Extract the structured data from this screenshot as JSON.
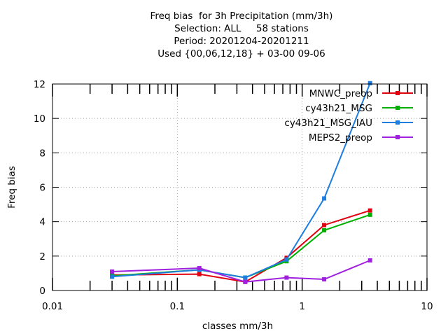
{
  "chart_data": {
    "type": "line",
    "title_lines": [
      "Freq bias  for 3h Precipitation (mm/3h)",
      "Selection: ALL     58 stations",
      "Period: 20201204-20201211",
      "Used {00,06,12,18} + 03-00 09-06"
    ],
    "xlabel": "classes mm/3h",
    "ylabel": "Freq bias",
    "x_scale": "log",
    "xlim": [
      0.01,
      10
    ],
    "ylim": [
      0,
      12
    ],
    "x_ticks": [
      0.01,
      0.1,
      1,
      10
    ],
    "x_tick_labels": [
      "0.01",
      "0.1",
      "1",
      "10"
    ],
    "y_ticks": [
      0,
      2,
      4,
      6,
      8,
      10,
      12
    ],
    "y_tick_labels": [
      "0",
      "2",
      "4",
      "6",
      "8",
      "10",
      "12"
    ],
    "grid": true,
    "legend_position": "top-right",
    "x": [
      0.03,
      0.15,
      0.35,
      0.75,
      1.5,
      3.5
    ],
    "series": [
      {
        "name": "MNWC_preop",
        "color": "#e0000f",
        "values": [
          0.9,
          0.95,
          0.5,
          1.9,
          3.8,
          4.65
        ]
      },
      {
        "name": "cy43h21_MSG",
        "color": "#00b000",
        "values": [
          0.85,
          1.2,
          0.75,
          1.7,
          3.5,
          4.4
        ]
      },
      {
        "name": "cy43h21_MSG_IAU",
        "color": "#1e7ee0",
        "values": [
          0.8,
          1.2,
          0.75,
          1.8,
          5.35,
          12.05
        ]
      },
      {
        "name": "MEPS2_preop",
        "color": "#a020e0",
        "values": [
          1.1,
          1.3,
          0.5,
          0.75,
          0.65,
          1.75
        ]
      }
    ]
  }
}
